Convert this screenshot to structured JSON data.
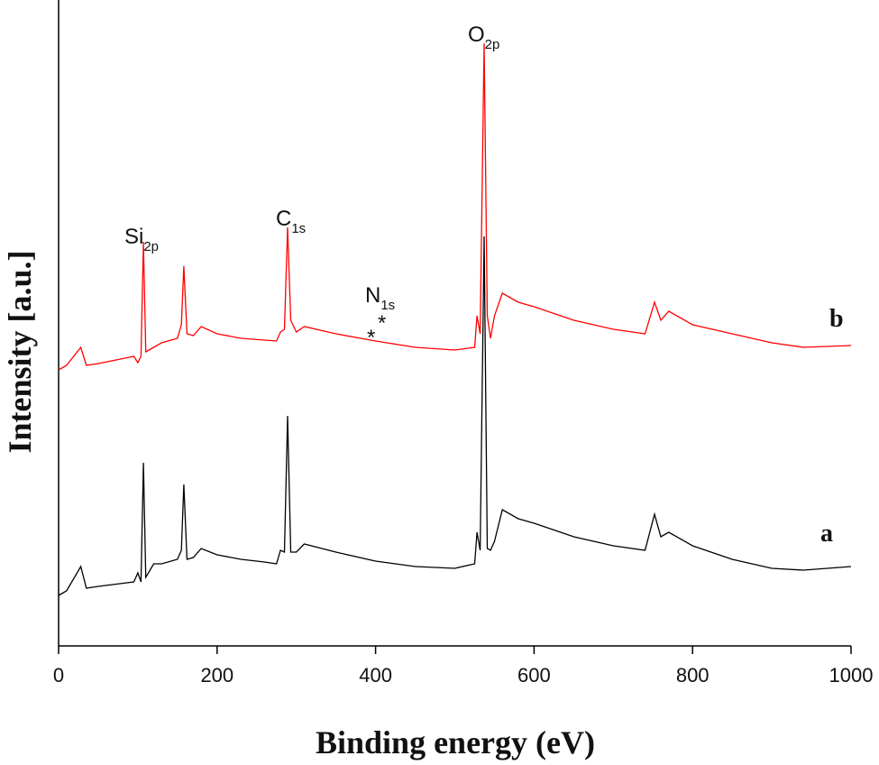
{
  "chart_data": {
    "type": "line",
    "x_label": "Binding energy (eV)",
    "y_label": "Intensity [a.u.]",
    "xlim": [
      0,
      1000
    ],
    "xticks": [
      0,
      200,
      400,
      600,
      800,
      1000
    ],
    "ylim": [
      0,
      71.6
    ],
    "x": [
      0,
      10,
      28,
      35,
      50,
      95,
      100,
      104,
      107,
      110,
      120,
      130,
      150,
      155,
      158,
      162,
      170,
      180,
      200,
      230,
      260,
      275,
      280,
      285,
      289,
      293,
      300,
      310,
      350,
      400,
      450,
      500,
      525,
      528,
      532,
      537,
      541,
      545,
      550,
      560,
      580,
      600,
      650,
      700,
      740,
      752,
      760,
      770,
      800,
      850,
      900,
      940,
      1000
    ],
    "series": [
      {
        "name": "a",
        "color": "#000000",
        "values": [
          5.6,
          6.1,
          8.8,
          6.4,
          6.6,
          7.1,
          8.1,
          7.1,
          20.3,
          7.6,
          9.1,
          9.1,
          9.6,
          10.6,
          17.9,
          9.6,
          9.8,
          10.8,
          10.1,
          9.6,
          9.3,
          9.1,
          10.6,
          10.4,
          25.5,
          10.4,
          10.4,
          11.3,
          10.4,
          9.4,
          8.8,
          8.6,
          9.1,
          12.6,
          10.6,
          45.4,
          10.8,
          10.6,
          11.6,
          15.1,
          14.1,
          13.6,
          12.1,
          11.1,
          10.6,
          14.6,
          12.1,
          12.6,
          11.1,
          9.6,
          8.6,
          8.4,
          8.8
        ]
      },
      {
        "name": "b",
        "color": "#ff0000",
        "values": [
          30.6,
          31.1,
          33.1,
          31.1,
          31.3,
          32.1,
          31.4,
          32.1,
          44.8,
          32.6,
          33.1,
          33.6,
          34.1,
          35.6,
          42.1,
          34.6,
          34.4,
          35.4,
          34.6,
          34.1,
          33.9,
          33.8,
          34.8,
          35.1,
          46.4,
          36.1,
          34.8,
          35.4,
          34.6,
          33.8,
          33.1,
          32.8,
          33.1,
          36.6,
          34.6,
          66.8,
          36.6,
          34.1,
          36.6,
          39.1,
          38.1,
          37.6,
          36.1,
          35.1,
          34.6,
          38.1,
          36.1,
          37.1,
          35.6,
          34.6,
          33.6,
          33.1,
          33.3
        ]
      }
    ],
    "annotations": [
      {
        "text": "Si",
        "sub": "2p"
      },
      {
        "text": "C",
        "sub": "1s"
      },
      {
        "text": "N",
        "sub": "1s"
      },
      {
        "text": "O",
        "sub": "2p"
      },
      {
        "text": "*"
      },
      {
        "text": "*"
      }
    ]
  }
}
